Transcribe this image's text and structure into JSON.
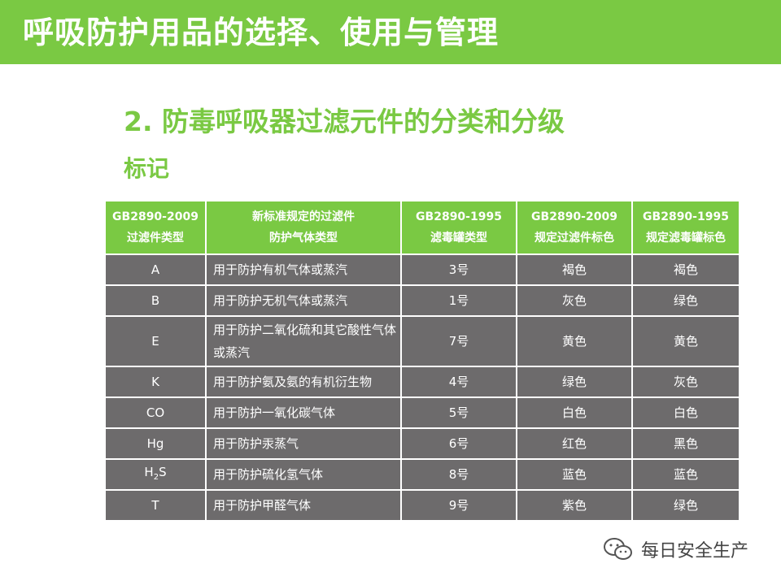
{
  "slide": {
    "title": "呼吸防护用品的选择、使用与管理",
    "subtitle": "2. 防毒呼吸器过滤元件的分类和分级",
    "subtitle2": "标记"
  },
  "table": {
    "headers": [
      {
        "line1": "GB2890-2009",
        "line2": "过滤件类型"
      },
      {
        "line1": "新标准规定的过滤件",
        "line2": "防护气体类型"
      },
      {
        "line1": "GB2890-1995",
        "line2": "滤毒罐类型"
      },
      {
        "line1": "GB2890-2009",
        "line2": "规定过滤件标色"
      },
      {
        "line1": "GB2890-1995",
        "line2": "规定滤毒罐标色"
      }
    ],
    "rows": [
      {
        "type": "A",
        "desc": "用于防护有机气体或蒸汽",
        "old_type": "3号",
        "new_color": "褐色",
        "old_color": "褐色"
      },
      {
        "type": "B",
        "desc": "用于防护无机气体或蒸汽",
        "old_type": "1号",
        "new_color": "灰色",
        "old_color": "绿色"
      },
      {
        "type": "E",
        "desc": "用于防护二氧化硫和其它酸性气体或蒸汽",
        "old_type": "7号",
        "new_color": "黄色",
        "old_color": "黄色"
      },
      {
        "type": "K",
        "desc": "用于防护氨及氨的有机衍生物",
        "old_type": "4号",
        "new_color": "绿色",
        "old_color": "灰色"
      },
      {
        "type": "CO",
        "desc": "用于防护一氧化碳气体",
        "old_type": "5号",
        "new_color": "白色",
        "old_color": "白色"
      },
      {
        "type": "Hg",
        "desc": "用于防护汞蒸气",
        "old_type": "6号",
        "new_color": "红色",
        "old_color": "黑色"
      },
      {
        "type": "H2S",
        "desc": "用于防护硫化氢气体",
        "old_type": "8号",
        "new_color": "蓝色",
        "old_color": "蓝色"
      },
      {
        "type": "T",
        "desc": "用于防护甲醛气体",
        "old_type": "9号",
        "new_color": "紫色",
        "old_color": "绿色"
      }
    ]
  },
  "watermark": {
    "text": "每日安全生产",
    "icon": "wechat-icon"
  },
  "colors": {
    "accent": "#7ac943",
    "cell_bg": "#6d6b6c"
  }
}
